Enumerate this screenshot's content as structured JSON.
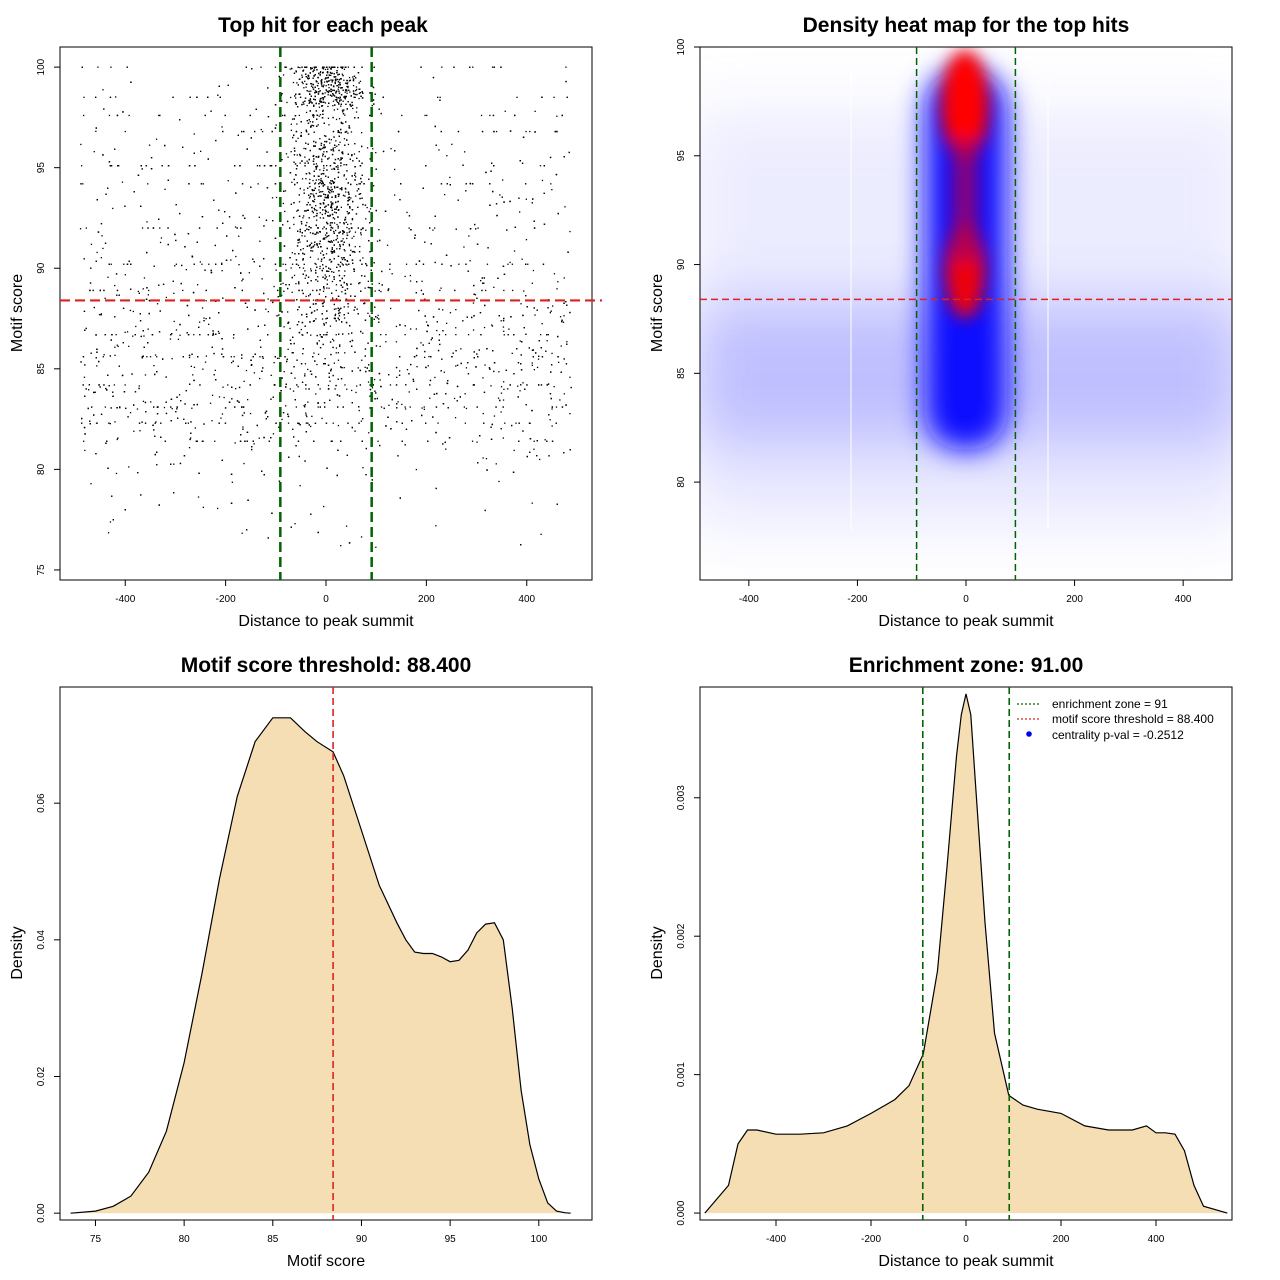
{
  "chart_data": [
    {
      "type": "scatter",
      "title": "Top hit for each peak",
      "xlabel": "Distance to peak summit",
      "ylabel": "Motif score",
      "xlim": [
        -530,
        530
      ],
      "ylim": [
        74.5,
        101
      ],
      "xticks": [
        "-400",
        "-200",
        "0",
        "200",
        "400"
      ],
      "yticks": [
        "75",
        "80",
        "85",
        "90",
        "95",
        "100"
      ],
      "xtick_values": [
        -400,
        -200,
        0,
        200,
        400
      ],
      "ytick_values": [
        75,
        80,
        85,
        90,
        95,
        100
      ],
      "vlines": [
        -91,
        91
      ],
      "hline": 88.4,
      "vline_color": "#006400",
      "hline_color": "#dd2222",
      "point_color": "#000000"
    },
    {
      "type": "heatmap",
      "title": "Density heat map for the top hits",
      "xlabel": "Distance to peak summit",
      "ylabel": "Motif score",
      "xlim": [
        -490,
        490
      ],
      "ylim": [
        75.5,
        100
      ],
      "xticks": [
        "-400",
        "-200",
        "0",
        "200",
        "400"
      ],
      "yticks": [
        "80",
        "85",
        "90",
        "95",
        "100"
      ],
      "xtick_values": [
        -400,
        -200,
        0,
        200,
        400
      ],
      "ytick_values": [
        80,
        85,
        90,
        95,
        100
      ],
      "vlines": [
        -91,
        91
      ],
      "hline": 88.4,
      "colors": [
        "#ffffff",
        "#0000ff",
        "#ff0000"
      ]
    },
    {
      "type": "area",
      "title": "Motif score threshold: 88.400",
      "xlabel": "Motif score",
      "ylabel": "Density",
      "xlim": [
        73,
        103
      ],
      "ylim": [
        -0.001,
        0.077
      ],
      "xticks": [
        "75",
        "80",
        "85",
        "90",
        "95",
        "100"
      ],
      "yticks": [
        "0.00",
        "0.02",
        "0.04",
        "0.06"
      ],
      "xtick_values": [
        75,
        80,
        85,
        90,
        95,
        100
      ],
      "ytick_values": [
        0,
        0.02,
        0.04,
        0.06
      ],
      "x": [
        73.6,
        75.0,
        76.0,
        77.0,
        78.0,
        79.0,
        80.0,
        81.0,
        82.0,
        83.0,
        84.0,
        85.0,
        86.0,
        86.8,
        87.5,
        88.4,
        89.0,
        90.0,
        91.0,
        92.0,
        92.5,
        93.0,
        93.5,
        94.0,
        94.5,
        95.0,
        95.5,
        96.0,
        96.5,
        97.0,
        97.5,
        98.0,
        98.5,
        99.0,
        99.5,
        100.0,
        100.5,
        101.0,
        101.5,
        101.8
      ],
      "values": [
        0.0,
        0.0003,
        0.001,
        0.0025,
        0.006,
        0.012,
        0.022,
        0.035,
        0.049,
        0.061,
        0.069,
        0.0725,
        0.0725,
        0.0705,
        0.069,
        0.0675,
        0.064,
        0.056,
        0.048,
        0.0425,
        0.04,
        0.0382,
        0.038,
        0.038,
        0.0375,
        0.0368,
        0.037,
        0.0385,
        0.041,
        0.0423,
        0.0425,
        0.04,
        0.03,
        0.018,
        0.01,
        0.005,
        0.0015,
        0.0003,
        5e-05,
        0.0
      ],
      "vline": 88.4,
      "fill_color": "#f5deb3",
      "vline_color": "#dd2222"
    },
    {
      "type": "area",
      "title": "Enrichment zone: 91.00",
      "xlabel": "Distance to peak summit",
      "ylabel": "Density",
      "xlim": [
        -560,
        560
      ],
      "ylim": [
        -5e-05,
        0.0038
      ],
      "xticks": [
        "-400",
        "-200",
        "0",
        "200",
        "400"
      ],
      "yticks": [
        "0.000",
        "0.001",
        "0.002",
        "0.003"
      ],
      "xtick_values": [
        -400,
        -200,
        0,
        200,
        400
      ],
      "ytick_values": [
        0,
        0.001,
        0.002,
        0.003
      ],
      "x": [
        -550,
        -500,
        -480,
        -460,
        -440,
        -400,
        -350,
        -300,
        -250,
        -200,
        -150,
        -120,
        -90,
        -60,
        -40,
        -20,
        -10,
        0,
        10,
        20,
        40,
        60,
        90,
        120,
        150,
        200,
        250,
        300,
        350,
        380,
        400,
        420,
        440,
        460,
        480,
        500,
        550
      ],
      "values": [
        0.0,
        0.0002,
        0.0005,
        0.0006,
        0.0006,
        0.00057,
        0.00057,
        0.00058,
        0.00063,
        0.00072,
        0.00082,
        0.00092,
        0.00115,
        0.00175,
        0.0025,
        0.0033,
        0.0036,
        0.00375,
        0.0036,
        0.0031,
        0.0021,
        0.0013,
        0.00085,
        0.00078,
        0.00075,
        0.00072,
        0.00063,
        0.0006,
        0.0006,
        0.00063,
        0.00058,
        0.00058,
        0.00057,
        0.00045,
        0.0002,
        5e-05,
        0.0
      ],
      "vlines": [
        -91,
        91
      ],
      "fill_color": "#f5deb3",
      "vline_color": "#006400",
      "legend": {
        "position": "top-right",
        "entries": [
          {
            "label": "enrichment zone = 91",
            "color": "#006400",
            "style": "dotted-line"
          },
          {
            "label": "motif score threshold = 88.400",
            "color": "#dd2222",
            "style": "dotted-line"
          },
          {
            "label": "centrality p-val = -0.2512",
            "color": "#0000ff",
            "style": "point"
          }
        ]
      }
    }
  ]
}
